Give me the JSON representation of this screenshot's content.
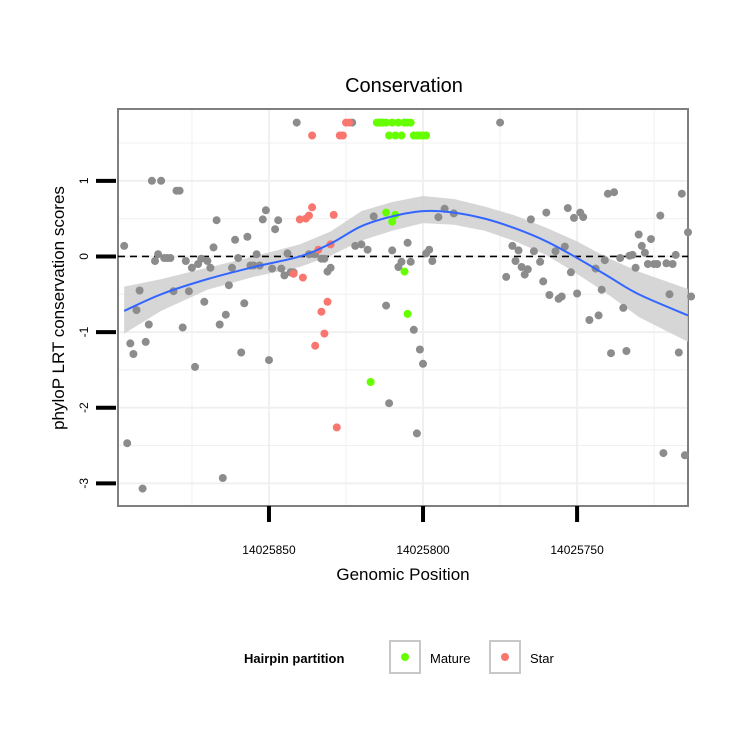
{
  "chart_data": {
    "type": "scatter",
    "title": "Conservation",
    "xlabel": "Genomic Position",
    "ylabel": "phyloP LRT conservation scores",
    "x_reversed": true,
    "xlim": [
      14025899,
      14025714
    ],
    "ylim": [
      -3.3,
      1.95
    ],
    "xticks": [
      14025850,
      14025800,
      14025750
    ],
    "xtick_labels": [
      "14025850",
      "14025800",
      "14025750"
    ],
    "yticks": [
      -3,
      -2,
      -1,
      0,
      1
    ],
    "ytick_labels": [
      "-3",
      "-2",
      "-1",
      "0",
      "1"
    ],
    "reference_line": {
      "y": 0,
      "style": "dashed"
    },
    "grid": true,
    "legend": {
      "title": "Hairpin partition",
      "position": "bottom",
      "entries": [
        {
          "label": "Mature",
          "color": "#66ff00"
        },
        {
          "label": "Star",
          "color": "#f8766d"
        }
      ]
    },
    "colors": {
      "other": "#8c8c8c",
      "Mature": "#66ff00",
      "Star": "#f8766d",
      "smooth": "#3366ff",
      "ribbon": "#cfcfcf"
    },
    "series": [
      {
        "group": "other",
        "points": [
          [
            14025897,
            0.14
          ],
          [
            14025896,
            -2.47
          ],
          [
            14025895,
            -1.15
          ],
          [
            14025894,
            -1.29
          ],
          [
            14025893,
            -0.71
          ],
          [
            14025892,
            -0.45
          ],
          [
            14025891,
            -3.07
          ],
          [
            14025890,
            -1.13
          ],
          [
            14025889,
            -0.9
          ],
          [
            14025888,
            1.0
          ],
          [
            14025887,
            -0.06
          ],
          [
            14025886,
            0.03
          ],
          [
            14025885,
            1.0
          ],
          [
            14025884,
            -0.02
          ],
          [
            14025883,
            -0.02
          ],
          [
            14025882,
            -0.02
          ],
          [
            14025881,
            -0.46
          ],
          [
            14025880,
            0.87
          ],
          [
            14025879,
            0.87
          ],
          [
            14025878,
            -0.94
          ],
          [
            14025877,
            -0.06
          ],
          [
            14025876,
            -0.46
          ],
          [
            14025875,
            -0.15
          ],
          [
            14025874,
            -1.46
          ],
          [
            14025873,
            -0.1
          ],
          [
            14025872,
            -0.03
          ],
          [
            14025871,
            -0.6
          ],
          [
            14025870,
            -0.06
          ],
          [
            14025869,
            -0.15
          ],
          [
            14025868,
            0.12
          ],
          [
            14025867,
            0.48
          ],
          [
            14025866,
            -0.9
          ],
          [
            14025865,
            -2.93
          ],
          [
            14025864,
            -0.77
          ],
          [
            14025863,
            -0.38
          ],
          [
            14025862,
            -0.15
          ],
          [
            14025861,
            0.22
          ],
          [
            14025860,
            -0.02
          ],
          [
            14025859,
            -1.27
          ],
          [
            14025858,
            -0.62
          ],
          [
            14025857,
            0.26
          ],
          [
            14025856,
            -0.12
          ],
          [
            14025855,
            -0.12
          ],
          [
            14025854,
            0.03
          ],
          [
            14025853,
            -0.12
          ],
          [
            14025852,
            0.49
          ],
          [
            14025851,
            0.61
          ],
          [
            14025850,
            -1.37
          ],
          [
            14025849,
            -0.16
          ],
          [
            14025848,
            0.36
          ],
          [
            14025847,
            0.48
          ],
          [
            14025846,
            -0.16
          ],
          [
            14025845,
            -0.25
          ],
          [
            14025844,
            0.04
          ],
          [
            14025843,
            -0.21
          ],
          [
            14025842,
            -0.21
          ],
          [
            14025841,
            1.77
          ],
          [
            14025837,
            0.03
          ],
          [
            14025835,
            0.03
          ],
          [
            14025833,
            -0.03
          ],
          [
            14025832,
            -0.03
          ],
          [
            14025831,
            -0.2
          ],
          [
            14025830,
            -0.15
          ],
          [
            14025823,
            1.77
          ],
          [
            14025822,
            0.14
          ],
          [
            14025820,
            0.16
          ],
          [
            14025818,
            0.09
          ],
          [
            14025816,
            0.53
          ],
          [
            14025814,
            1.77
          ],
          [
            14025812,
            -0.65
          ],
          [
            14025811,
            -1.94
          ],
          [
            14025810,
            0.08
          ],
          [
            14025808,
            -0.14
          ],
          [
            14025807,
            -0.07
          ],
          [
            14025806,
            1.77
          ],
          [
            14025805,
            0.18
          ],
          [
            14025804,
            -0.07
          ],
          [
            14025803,
            -0.97
          ],
          [
            14025802,
            -2.34
          ],
          [
            14025801,
            -1.23
          ],
          [
            14025800,
            -1.42
          ],
          [
            14025799,
            0.04
          ],
          [
            14025798,
            0.09
          ],
          [
            14025797,
            -0.06
          ],
          [
            14025795,
            0.52
          ],
          [
            14025793,
            0.63
          ],
          [
            14025790,
            0.57
          ],
          [
            14025775,
            1.77
          ],
          [
            14025773,
            -0.27
          ],
          [
            14025771,
            0.14
          ],
          [
            14025770,
            -0.06
          ],
          [
            14025769,
            0.08
          ],
          [
            14025768,
            -0.14
          ],
          [
            14025767,
            -0.24
          ],
          [
            14025766,
            -0.17
          ],
          [
            14025765,
            0.49
          ],
          [
            14025764,
            0.07
          ],
          [
            14025762,
            -0.07
          ],
          [
            14025761,
            -0.33
          ],
          [
            14025760,
            0.58
          ],
          [
            14025759,
            -0.51
          ],
          [
            14025757,
            0.07
          ],
          [
            14025756,
            -0.56
          ],
          [
            14025755,
            -0.53
          ],
          [
            14025754,
            0.13
          ],
          [
            14025753,
            0.64
          ],
          [
            14025752,
            -0.21
          ],
          [
            14025751,
            0.51
          ],
          [
            14025750,
            -0.49
          ],
          [
            14025749,
            0.58
          ],
          [
            14025748,
            0.52
          ],
          [
            14025746,
            -0.84
          ],
          [
            14025744,
            -0.16
          ],
          [
            14025743,
            -0.78
          ],
          [
            14025742,
            -0.44
          ],
          [
            14025741,
            -0.05
          ],
          [
            14025740,
            0.83
          ],
          [
            14025739,
            -1.28
          ],
          [
            14025738,
            0.85
          ],
          [
            14025736,
            -0.02
          ],
          [
            14025735,
            -0.68
          ],
          [
            14025734,
            -1.25
          ],
          [
            14025733,
            0.01
          ],
          [
            14025732,
            0.02
          ],
          [
            14025731,
            -0.15
          ],
          [
            14025730,
            0.29
          ],
          [
            14025729,
            0.14
          ],
          [
            14025728,
            0.05
          ],
          [
            14025727,
            -0.1
          ],
          [
            14025726,
            0.23
          ],
          [
            14025725,
            -0.1
          ],
          [
            14025724,
            -0.1
          ],
          [
            14025723,
            0.54
          ],
          [
            14025722,
            -2.6
          ],
          [
            14025721,
            -0.09
          ],
          [
            14025720,
            -0.5
          ],
          [
            14025719,
            -0.1
          ],
          [
            14025718,
            0.02
          ],
          [
            14025717,
            -1.27
          ],
          [
            14025716,
            0.83
          ],
          [
            14025715,
            -2.63
          ],
          [
            14025714,
            0.32
          ],
          [
            14025713,
            -0.53
          ]
        ]
      },
      {
        "group": "Mature",
        "points": [
          [
            14025815,
            1.77
          ],
          [
            14025814,
            1.77
          ],
          [
            14025813,
            1.77
          ],
          [
            14025812,
            1.77
          ],
          [
            14025811,
            1.6
          ],
          [
            14025810,
            1.77
          ],
          [
            14025809,
            1.6
          ],
          [
            14025808,
            1.77
          ],
          [
            14025807,
            1.6
          ],
          [
            14025806,
            1.77
          ],
          [
            14025805,
            1.77
          ],
          [
            14025804,
            1.77
          ],
          [
            14025803,
            1.6
          ],
          [
            14025802,
            1.6
          ],
          [
            14025801,
            1.6
          ],
          [
            14025800,
            1.6
          ],
          [
            14025799,
            1.6
          ],
          [
            14025812,
            0.58
          ],
          [
            14025809,
            0.55
          ],
          [
            14025810,
            0.46
          ],
          [
            14025806,
            -0.2
          ],
          [
            14025805,
            -0.76
          ],
          [
            14025817,
            -1.66
          ]
        ]
      },
      {
        "group": "Star",
        "points": [
          [
            14025836,
            1.6
          ],
          [
            14025827,
            1.6
          ],
          [
            14025826,
            1.6
          ],
          [
            14025825,
            1.77
          ],
          [
            14025824,
            1.77
          ],
          [
            14025840,
            0.49
          ],
          [
            14025838,
            0.5
          ],
          [
            14025837,
            0.54
          ],
          [
            14025836,
            0.65
          ],
          [
            14025834,
            0.09
          ],
          [
            14025833,
            -0.73
          ],
          [
            14025832,
            -1.02
          ],
          [
            14025831,
            -0.6
          ],
          [
            14025829,
            0.55
          ],
          [
            14025828,
            -2.26
          ],
          [
            14025830,
            0.16
          ],
          [
            14025835,
            -1.18
          ],
          [
            14025839,
            -0.28
          ],
          [
            14025842,
            -0.23
          ]
        ]
      }
    ],
    "smooth": [
      {
        "x": 14025897,
        "y": -0.72,
        "lo": -1.02,
        "hi": -0.4
      },
      {
        "x": 14025885,
        "y": -0.5,
        "lo": -0.72,
        "hi": -0.3
      },
      {
        "x": 14025870,
        "y": -0.3,
        "lo": -0.44,
        "hi": -0.15
      },
      {
        "x": 14025855,
        "y": -0.14,
        "lo": -0.27,
        "hi": 0.0
      },
      {
        "x": 14025840,
        "y": 0.0,
        "lo": -0.14,
        "hi": 0.16
      },
      {
        "x": 14025830,
        "y": 0.17,
        "lo": 0.01,
        "hi": 0.33
      },
      {
        "x": 14025820,
        "y": 0.4,
        "lo": 0.21,
        "hi": 0.6
      },
      {
        "x": 14025810,
        "y": 0.53,
        "lo": 0.34,
        "hi": 0.72
      },
      {
        "x": 14025800,
        "y": 0.6,
        "lo": 0.44,
        "hi": 0.8
      },
      {
        "x": 14025790,
        "y": 0.58,
        "lo": 0.42,
        "hi": 0.76
      },
      {
        "x": 14025780,
        "y": 0.5,
        "lo": 0.34,
        "hi": 0.66
      },
      {
        "x": 14025770,
        "y": 0.37,
        "lo": 0.2,
        "hi": 0.54
      },
      {
        "x": 14025760,
        "y": 0.2,
        "lo": 0.02,
        "hi": 0.38
      },
      {
        "x": 14025750,
        "y": -0.02,
        "lo": -0.23,
        "hi": 0.2
      },
      {
        "x": 14025740,
        "y": -0.26,
        "lo": -0.5,
        "hi": -0.02
      },
      {
        "x": 14025730,
        "y": -0.5,
        "lo": -0.8,
        "hi": -0.2
      },
      {
        "x": 14025714,
        "y": -0.78,
        "lo": -1.13,
        "hi": -0.43
      }
    ]
  }
}
